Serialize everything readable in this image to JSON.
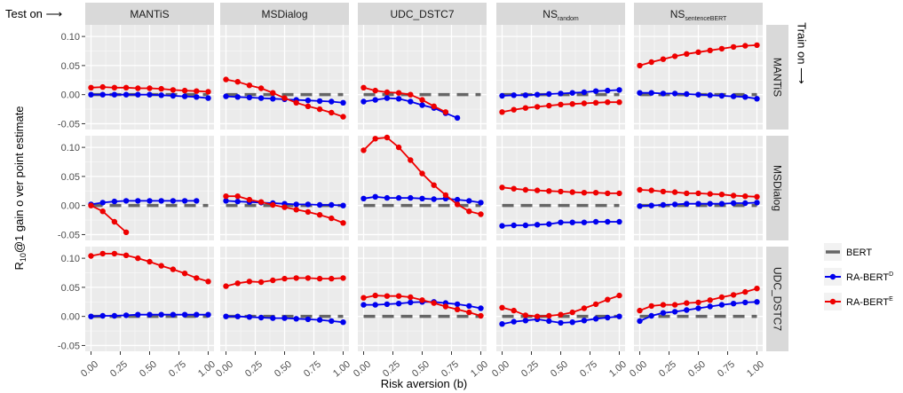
{
  "chart_data": {
    "type": "line",
    "title": "",
    "xlabel": "Risk aversion (b)",
    "ylabel_parts": [
      "R",
      "10",
      "@1 gain o ver point estimate"
    ],
    "corner_label_left": "Test on ⟶",
    "corner_label_right": "Train on ⟶",
    "xlim": [
      0,
      1
    ],
    "ylim": [
      -0.06,
      0.12
    ],
    "x_ticks": [
      0.0,
      0.25,
      0.5,
      0.75,
      1.0
    ],
    "x_tick_labels": [
      "0.00",
      "0.25",
      "0.50",
      "0.75",
      "1.00"
    ],
    "y_ticks": [
      -0.05,
      0.0,
      0.05,
      0.1
    ],
    "y_tick_labels": [
      "-0.05",
      "0.00",
      "0.05",
      "0.10"
    ],
    "grid": true,
    "legend_position": "right",
    "columns": [
      {
        "name": "MANTiS"
      },
      {
        "name": "MSDialog"
      },
      {
        "name": "UDC_DSTC7"
      },
      {
        "name": "NS",
        "sub": "random"
      },
      {
        "name": "NS",
        "sub": "sentenceBERT"
      }
    ],
    "rows": [
      "MANTiS",
      "MSDialog",
      "UDC_DSTC7"
    ],
    "x": [
      0.0,
      0.1,
      0.2,
      0.3,
      0.4,
      0.5,
      0.6,
      0.7,
      0.8,
      0.9,
      1.0
    ],
    "series_styles": [
      {
        "name": "BERT",
        "sup": "",
        "color": "#666666",
        "dashed": true,
        "markers": false
      },
      {
        "name": "RA-BERT",
        "sup": "D",
        "color": "#0000ee",
        "dashed": false,
        "markers": true
      },
      {
        "name": "RA-BERT",
        "sup": "E",
        "color": "#ee0000",
        "dashed": false,
        "markers": true
      }
    ],
    "panels": [
      [
        {
          "BERT": 0.0,
          "RA-BERT^D": [
            0.0,
            0.0,
            0.0,
            0.0,
            0.0,
            0.0,
            -0.001,
            -0.002,
            -0.003,
            -0.004,
            -0.006
          ],
          "RA-BERT^E": [
            0.012,
            0.013,
            0.012,
            0.012,
            0.011,
            0.011,
            0.01,
            0.008,
            0.007,
            0.006,
            0.005
          ]
        },
        {
          "BERT": 0.0,
          "RA-BERT^D": [
            -0.003,
            -0.004,
            -0.005,
            -0.006,
            -0.007,
            -0.008,
            -0.009,
            -0.01,
            -0.011,
            -0.012,
            -0.014
          ],
          "RA-BERT^E": [
            0.026,
            0.022,
            0.016,
            0.011,
            0.003,
            -0.006,
            -0.014,
            -0.02,
            -0.025,
            -0.031,
            -0.038
          ]
        },
        {
          "BERT": 0.0,
          "RA-BERT^D": [
            -0.012,
            -0.009,
            -0.006,
            -0.007,
            -0.012,
            -0.018,
            -0.023,
            -0.032,
            -0.04,
            null,
            null
          ],
          "RA-BERT^E": [
            0.012,
            0.007,
            0.004,
            0.003,
            0.0,
            -0.009,
            -0.02,
            -0.03,
            null,
            null,
            null
          ]
        },
        {
          "BERT": 0.0,
          "RA-BERT^D": [
            -0.002,
            -0.001,
            -0.001,
            0.0,
            0.001,
            0.002,
            0.003,
            0.004,
            0.006,
            0.007,
            0.008
          ],
          "RA-BERT^E": [
            -0.03,
            -0.026,
            -0.023,
            -0.021,
            -0.019,
            -0.017,
            -0.016,
            -0.015,
            -0.014,
            -0.013,
            -0.013
          ]
        },
        {
          "BERT": 0.0,
          "RA-BERT^D": [
            0.003,
            0.003,
            0.002,
            0.002,
            0.001,
            0.0,
            -0.001,
            -0.002,
            -0.003,
            -0.004,
            -0.007
          ],
          "RA-BERT^E": [
            0.05,
            0.056,
            0.061,
            0.066,
            0.07,
            0.073,
            0.076,
            0.079,
            0.082,
            0.084,
            0.085
          ]
        }
      ],
      [
        {
          "BERT": 0.0,
          "RA-BERT^D": [
            0.002,
            0.005,
            0.007,
            0.008,
            0.008,
            0.008,
            0.008,
            0.008,
            0.008,
            0.008,
            null
          ],
          "RA-BERT^E": [
            0.0,
            -0.01,
            -0.028,
            -0.046,
            null,
            null,
            null,
            null,
            null,
            null,
            null
          ]
        },
        {
          "BERT": 0.0,
          "RA-BERT^D": [
            0.008,
            0.007,
            0.006,
            0.005,
            0.004,
            0.003,
            0.002,
            0.002,
            0.001,
            0.001,
            0.0
          ],
          "RA-BERT^E": [
            0.016,
            0.016,
            0.01,
            0.006,
            0.001,
            -0.003,
            -0.007,
            -0.011,
            -0.016,
            -0.022,
            -0.03
          ]
        },
        {
          "BERT": 0.0,
          "RA-BERT^D": [
            0.012,
            0.015,
            0.013,
            0.013,
            0.013,
            0.012,
            0.011,
            0.012,
            0.01,
            0.008,
            0.005
          ],
          "RA-BERT^E": [
            0.095,
            0.115,
            0.117,
            0.1,
            0.078,
            0.055,
            0.035,
            0.018,
            0.002,
            -0.01,
            -0.015
          ]
        },
        {
          "BERT": 0.0,
          "RA-BERT^D": [
            -0.035,
            -0.034,
            -0.034,
            -0.033,
            -0.032,
            -0.029,
            -0.029,
            -0.029,
            -0.028,
            -0.028,
            -0.028
          ],
          "RA-BERT^E": [
            0.031,
            0.029,
            0.027,
            0.026,
            0.025,
            0.024,
            0.023,
            0.022,
            0.022,
            0.021,
            0.021
          ]
        },
        {
          "BERT": 0.0,
          "RA-BERT^D": [
            -0.001,
            0.0,
            0.001,
            0.002,
            0.003,
            0.003,
            0.003,
            0.003,
            0.004,
            0.004,
            0.005
          ],
          "RA-BERT^E": [
            0.027,
            0.026,
            0.024,
            0.023,
            0.021,
            0.021,
            0.02,
            0.019,
            0.017,
            0.016,
            0.015
          ]
        }
      ],
      [
        {
          "BERT": 0.0,
          "RA-BERT^D": [
            0.0,
            0.001,
            0.001,
            0.002,
            0.003,
            0.003,
            0.003,
            0.003,
            0.003,
            0.003,
            0.003
          ],
          "RA-BERT^E": [
            0.104,
            0.108,
            0.108,
            0.105,
            0.1,
            0.094,
            0.087,
            0.081,
            0.074,
            0.066,
            0.06
          ]
        },
        {
          "BERT": 0.0,
          "RA-BERT^D": [
            0.0,
            0.0,
            -0.001,
            -0.002,
            -0.003,
            -0.003,
            -0.004,
            -0.005,
            -0.006,
            -0.008,
            -0.01
          ],
          "RA-BERT^E": [
            0.052,
            0.057,
            0.06,
            0.059,
            0.062,
            0.065,
            0.066,
            0.066,
            0.065,
            0.065,
            0.066
          ]
        },
        {
          "BERT": 0.0,
          "RA-BERT^D": [
            0.02,
            0.02,
            0.021,
            0.022,
            0.024,
            0.025,
            0.025,
            0.023,
            0.021,
            0.018,
            0.014
          ],
          "RA-BERT^E": [
            0.032,
            0.036,
            0.035,
            0.035,
            0.033,
            0.028,
            0.023,
            0.017,
            0.012,
            0.007,
            0.001
          ]
        },
        {
          "BERT": 0.0,
          "RA-BERT^D": [
            -0.013,
            -0.009,
            -0.007,
            -0.005,
            -0.008,
            -0.011,
            -0.01,
            -0.007,
            -0.004,
            -0.002,
            0.0
          ],
          "RA-BERT^E": [
            0.015,
            0.01,
            0.002,
            0.0,
            0.001,
            0.003,
            0.007,
            0.014,
            0.021,
            0.029,
            0.036
          ]
        },
        {
          "BERT": 0.0,
          "RA-BERT^D": [
            -0.008,
            0.001,
            0.006,
            0.008,
            0.011,
            0.014,
            0.017,
            0.02,
            0.022,
            0.024,
            0.025
          ],
          "RA-BERT^E": [
            0.01,
            0.018,
            0.02,
            0.02,
            0.023,
            0.024,
            0.028,
            0.033,
            0.037,
            0.042,
            0.048
          ]
        }
      ]
    ]
  }
}
